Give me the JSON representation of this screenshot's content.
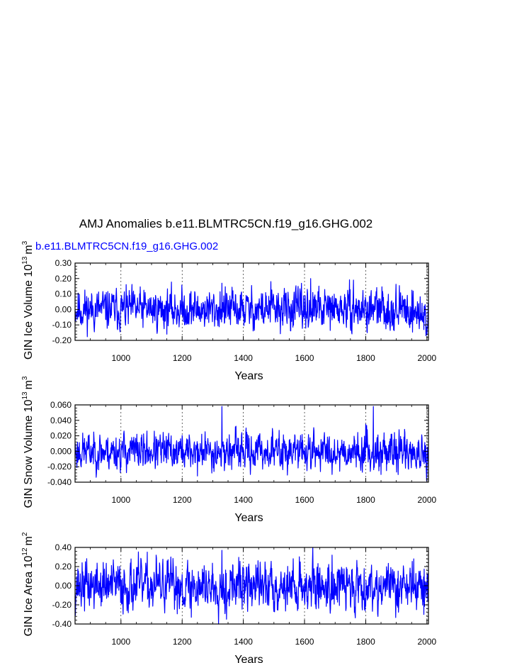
{
  "figure": {
    "title": "AMJ Anomalies b.e11.BLMTRC5CN.f19_g16.GHG.002",
    "legend_label": "b.e11.BLMTRC5CN.f19_g16.GHG.002",
    "series_color": "#0000ff"
  },
  "chart_data": [
    {
      "type": "line",
      "name": "ice-volume",
      "ylabel": "GIN Ice Volume 10",
      "ylabel_sup": "13",
      "ylabel_unit": "m",
      "ylabel_unit_sup": "3",
      "xlabel": "Years",
      "xlim": [
        850,
        2005
      ],
      "ylim": [
        -0.2,
        0.3
      ],
      "xticks": [
        1000,
        1200,
        1400,
        1600,
        1800,
        2000
      ],
      "xtick_labels": [
        "1000",
        "1200",
        "1400",
        "1600",
        "1800",
        "2000"
      ],
      "yticks": [
        -0.2,
        -0.1,
        0.0,
        0.1,
        0.2,
        0.3
      ],
      "ytick_labels": [
        "-0.20",
        "-0.10",
        "0.00",
        "0.10",
        "0.20",
        "0.30"
      ],
      "amplitude": 0.06,
      "peaks": [
        [
          1330,
          0.17
        ],
        [
          1490,
          0.18
        ],
        [
          1620,
          0.2
        ],
        [
          1760,
          0.19
        ],
        [
          1805,
          -0.15
        ],
        [
          1990,
          -0.13
        ]
      ],
      "trend_end": -0.06,
      "seed": 11
    },
    {
      "type": "line",
      "name": "snow-volume",
      "ylabel": "GIN Snow Volume 10",
      "ylabel_sup": "13",
      "ylabel_unit": "m",
      "ylabel_unit_sup": "3",
      "xlabel": "Years",
      "xlim": [
        850,
        2005
      ],
      "ylim": [
        -0.04,
        0.06
      ],
      "xticks": [
        1000,
        1200,
        1400,
        1600,
        1800,
        2000
      ],
      "xtick_labels": [
        "1000",
        "1200",
        "1400",
        "1600",
        "1800",
        "2000"
      ],
      "yticks": [
        -0.04,
        -0.02,
        0.0,
        0.02,
        0.04,
        0.06
      ],
      "ytick_labels": [
        "-0.040",
        "-0.020",
        "0.000",
        "0.020",
        "0.040",
        "0.060"
      ],
      "amplitude": 0.011,
      "peaks": [
        [
          1330,
          0.058
        ],
        [
          1250,
          -0.032
        ],
        [
          1800,
          0.035
        ],
        [
          1825,
          0.058
        ],
        [
          1850,
          -0.03
        ],
        [
          2000,
          -0.028
        ]
      ],
      "trend_end": -0.015,
      "seed": 23
    },
    {
      "type": "line",
      "name": "ice-area",
      "ylabel": "GIN Ice Area 10",
      "ylabel_sup": "12",
      "ylabel_unit": "m",
      "ylabel_unit_sup": "2",
      "xlabel": "Years",
      "xlim": [
        850,
        2005
      ],
      "ylim": [
        -0.4,
        0.4
      ],
      "xticks": [
        1000,
        1200,
        1400,
        1600,
        1800,
        2000
      ],
      "xtick_labels": [
        "1000",
        "1200",
        "1400",
        "1600",
        "1800",
        "2000"
      ],
      "yticks": [
        -0.4,
        -0.2,
        0.0,
        0.2,
        0.4
      ],
      "ytick_labels": [
        "-0.40",
        "-0.20",
        "0.00",
        "0.20",
        "0.40"
      ],
      "amplitude": 0.12,
      "peaks": [
        [
          1330,
          0.37
        ],
        [
          1345,
          -0.35
        ],
        [
          1115,
          0.32
        ],
        [
          1690,
          0.32
        ],
        [
          1230,
          -0.33
        ],
        [
          1990,
          -0.3
        ]
      ],
      "trend_end": -0.03,
      "seed": 37
    }
  ]
}
